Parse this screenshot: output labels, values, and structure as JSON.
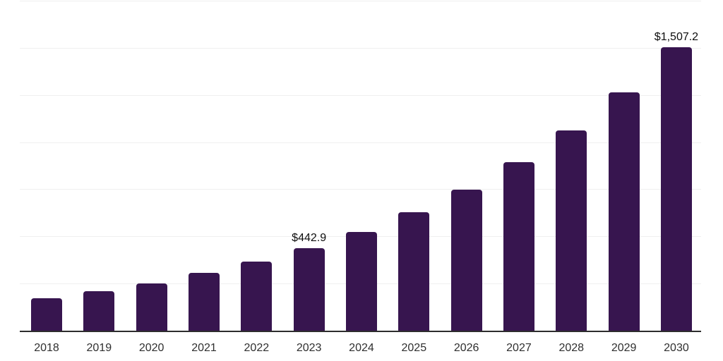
{
  "chart_data": {
    "type": "bar",
    "title": "",
    "xlabel": "",
    "ylabel": "",
    "categories": [
      "2018",
      "2019",
      "2020",
      "2021",
      "2022",
      "2023",
      "2024",
      "2025",
      "2026",
      "2027",
      "2028",
      "2029",
      "2030"
    ],
    "values": [
      175,
      213,
      254,
      310,
      369,
      442.9,
      526,
      631,
      750,
      896,
      1067,
      1269,
      1507.2
    ],
    "data_labels": {
      "2023": "$442.9",
      "2030": "$1,507.2"
    },
    "ylim": [
      0,
      1750
    ],
    "gridline_interval": 250,
    "grid": true,
    "legend": false,
    "colors": {
      "bar": "#37154F",
      "gridline": "#efefef",
      "axis_line": "#2d2d2d",
      "tick_label": "#2f2f2f",
      "data_label": "#0d0d0d",
      "background": "#ffffff"
    }
  }
}
